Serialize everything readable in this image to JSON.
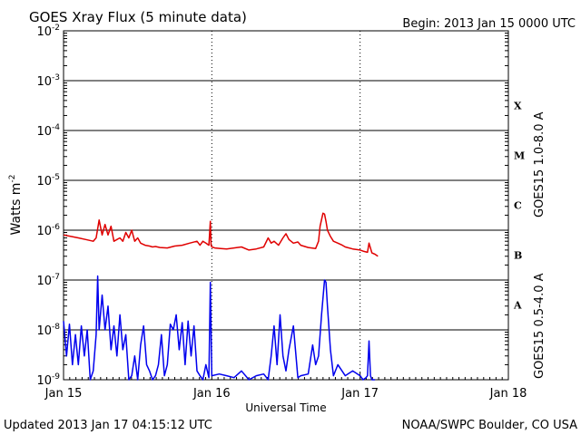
{
  "header": {
    "title": "GOES Xray Flux (5 minute data)",
    "begin": "Begin:  2013 Jan 15 0000 UTC"
  },
  "footer": {
    "updated": "Updated 2013 Jan 17 04:15:12 UTC",
    "source": "NOAA/SWPC Boulder, CO USA"
  },
  "chart_data": {
    "type": "line",
    "title": "GOES Xray Flux (5 minute data)",
    "xlabel": "Universal Time",
    "ylabel_base": "Watts m",
    "ylabel_exp": "-2",
    "yscale": "log",
    "ylim": [
      1e-09,
      0.01
    ],
    "xlim_days": [
      0,
      3
    ],
    "x_ticks": [
      {
        "day": 0,
        "label": "Jan 15"
      },
      {
        "day": 1,
        "label": "Jan 16"
      },
      {
        "day": 2,
        "label": "Jan 17"
      },
      {
        "day": 3,
        "label": "Jan 18"
      }
    ],
    "y_ticks": [
      {
        "exp": -2,
        "label": "10",
        "sup": "-2"
      },
      {
        "exp": -3,
        "label": "10",
        "sup": "-3"
      },
      {
        "exp": -4,
        "label": "10",
        "sup": "-4"
      },
      {
        "exp": -5,
        "label": "10",
        "sup": "-5"
      },
      {
        "exp": -6,
        "label": "10",
        "sup": "-6"
      },
      {
        "exp": -7,
        "label": "10",
        "sup": "-7"
      },
      {
        "exp": -8,
        "label": "10",
        "sup": "-8"
      },
      {
        "exp": -9,
        "label": "10",
        "sup": "-9"
      }
    ],
    "flare_classes": [
      {
        "label": "X",
        "exp": -3.5
      },
      {
        "label": "M",
        "exp": -4.5
      },
      {
        "label": "C",
        "exp": -5.5
      },
      {
        "label": "B",
        "exp": -6.5
      },
      {
        "label": "A",
        "exp": -7.5
      }
    ],
    "grid": true,
    "series": [
      {
        "name": "GOES15 1.0-8.0 A",
        "color": "#e00000",
        "x": [
          0.0,
          0.05,
          0.1,
          0.15,
          0.2,
          0.22,
          0.24,
          0.26,
          0.28,
          0.3,
          0.32,
          0.34,
          0.36,
          0.38,
          0.4,
          0.42,
          0.44,
          0.46,
          0.48,
          0.5,
          0.52,
          0.55,
          0.58,
          0.6,
          0.62,
          0.65,
          0.7,
          0.75,
          0.8,
          0.85,
          0.9,
          0.92,
          0.94,
          0.96,
          0.98,
          0.99,
          0.995,
          1.0,
          1.02,
          1.06,
          1.1,
          1.15,
          1.2,
          1.25,
          1.3,
          1.35,
          1.38,
          1.4,
          1.42,
          1.45,
          1.48,
          1.5,
          1.52,
          1.55,
          1.58,
          1.6,
          1.65,
          1.7,
          1.72,
          1.73,
          1.75,
          1.76,
          1.77,
          1.78,
          1.8,
          1.82,
          1.85,
          1.88,
          1.9,
          1.95,
          2.0,
          2.02,
          2.05,
          2.06,
          2.08,
          2.1,
          2.12
        ],
        "values": [
          8e-07,
          7.5e-07,
          7e-07,
          6.5e-07,
          6e-07,
          7e-07,
          1.6e-06,
          8e-07,
          1.3e-06,
          8e-07,
          1.2e-06,
          6e-07,
          6.5e-07,
          7e-07,
          6e-07,
          9e-07,
          7e-07,
          1e-06,
          6e-07,
          7e-07,
          5.5e-07,
          5e-07,
          4.8e-07,
          4.6e-07,
          4.7e-07,
          4.5e-07,
          4.4e-07,
          4.8e-07,
          5e-07,
          5.5e-07,
          6e-07,
          5e-07,
          6e-07,
          5.5e-07,
          5e-07,
          1.5e-06,
          5e-07,
          4.6e-07,
          4.4e-07,
          4.3e-07,
          4.2e-07,
          4.4e-07,
          4.6e-07,
          4e-07,
          4.2e-07,
          4.6e-07,
          7e-07,
          5.5e-07,
          6e-07,
          5e-07,
          7e-07,
          8.5e-07,
          6.5e-07,
          5.5e-07,
          5.8e-07,
          5e-07,
          4.5e-07,
          4.3e-07,
          6e-07,
          1.2e-06,
          2.2e-06,
          2.1e-06,
          1.5e-06,
          1e-06,
          7.5e-07,
          6e-07,
          5.5e-07,
          5e-07,
          4.6e-07,
          4.2e-07,
          4e-07,
          3.8e-07,
          3.6e-07,
          5.5e-07,
          3.5e-07,
          3.3e-07,
          3e-07
        ]
      },
      {
        "name": "GOES15 0.5-4.0 A",
        "color": "#0000ee",
        "x": [
          0.0,
          0.02,
          0.04,
          0.06,
          0.08,
          0.1,
          0.12,
          0.14,
          0.16,
          0.18,
          0.2,
          0.22,
          0.23,
          0.24,
          0.26,
          0.28,
          0.3,
          0.32,
          0.34,
          0.36,
          0.38,
          0.4,
          0.42,
          0.44,
          0.46,
          0.48,
          0.5,
          0.52,
          0.54,
          0.56,
          0.58,
          0.6,
          0.62,
          0.64,
          0.66,
          0.68,
          0.7,
          0.72,
          0.74,
          0.76,
          0.78,
          0.8,
          0.82,
          0.84,
          0.86,
          0.88,
          0.9,
          0.92,
          0.94,
          0.96,
          0.98,
          0.99,
          1.0,
          1.05,
          1.1,
          1.15,
          1.2,
          1.25,
          1.3,
          1.35,
          1.38,
          1.4,
          1.42,
          1.44,
          1.46,
          1.48,
          1.5,
          1.52,
          1.55,
          1.58,
          1.6,
          1.65,
          1.68,
          1.7,
          1.72,
          1.74,
          1.76,
          1.77,
          1.78,
          1.8,
          1.82,
          1.85,
          1.9,
          1.95,
          2.0,
          2.02,
          2.04,
          2.05,
          2.06,
          2.07,
          2.08,
          2.1
        ],
        "values": [
          1.5e-08,
          3e-09,
          1.3e-08,
          2e-09,
          8e-09,
          2e-09,
          1.2e-08,
          3e-09,
          1e-08,
          1e-09,
          1.5e-09,
          8e-09,
          1.2e-07,
          1e-08,
          5e-08,
          1e-08,
          3e-08,
          4e-09,
          1.2e-08,
          3e-09,
          2e-08,
          4e-09,
          8e-09,
          1e-09,
          1.2e-09,
          3e-09,
          1e-09,
          5e-09,
          1.2e-08,
          2e-09,
          1.5e-09,
          1e-09,
          1.2e-09,
          2e-09,
          8e-09,
          1.2e-09,
          2e-09,
          1.3e-08,
          1e-08,
          2e-08,
          4e-09,
          1.4e-08,
          2e-09,
          1.5e-08,
          3e-09,
          1.2e-08,
          1.5e-09,
          1.2e-09,
          1e-09,
          2e-09,
          1.1e-09,
          9e-08,
          1.2e-09,
          1.3e-09,
          1.2e-09,
          1.1e-09,
          1.5e-09,
          1e-09,
          1.2e-09,
          1.3e-09,
          1e-09,
          3e-09,
          1.2e-08,
          2e-09,
          2e-08,
          3e-09,
          1.5e-09,
          4e-09,
          1.2e-08,
          1.1e-09,
          1.2e-09,
          1.3e-09,
          5e-09,
          2e-09,
          3e-09,
          2e-08,
          1e-07,
          9e-08,
          3e-08,
          4e-09,
          1.2e-09,
          2e-09,
          1.2e-09,
          1.5e-09,
          1.2e-09,
          1e-09,
          1.1e-09,
          1.2e-09,
          6e-09,
          1.2e-09,
          1e-09,
          1e-09
        ]
      }
    ]
  }
}
